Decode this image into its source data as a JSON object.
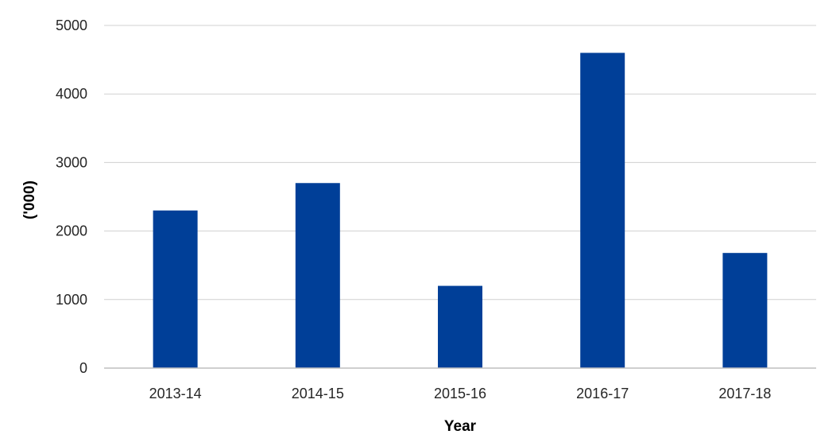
{
  "chart_data": {
    "type": "bar",
    "title": "",
    "xlabel": "Year",
    "ylabel": "('000)",
    "categories": [
      "2013-14",
      "2014-15",
      "2015-16",
      "2016-17",
      "2017-18"
    ],
    "values": [
      2300,
      2700,
      1200,
      4600,
      1680
    ],
    "ylim": [
      0,
      5000
    ],
    "yticks": [
      0,
      1000,
      2000,
      3000,
      4000,
      5000
    ],
    "grid": true,
    "legend": "none",
    "bar_color": "#003f98",
    "grid_color": "#d0d0d0",
    "axis_color": "#bfbfbf"
  }
}
